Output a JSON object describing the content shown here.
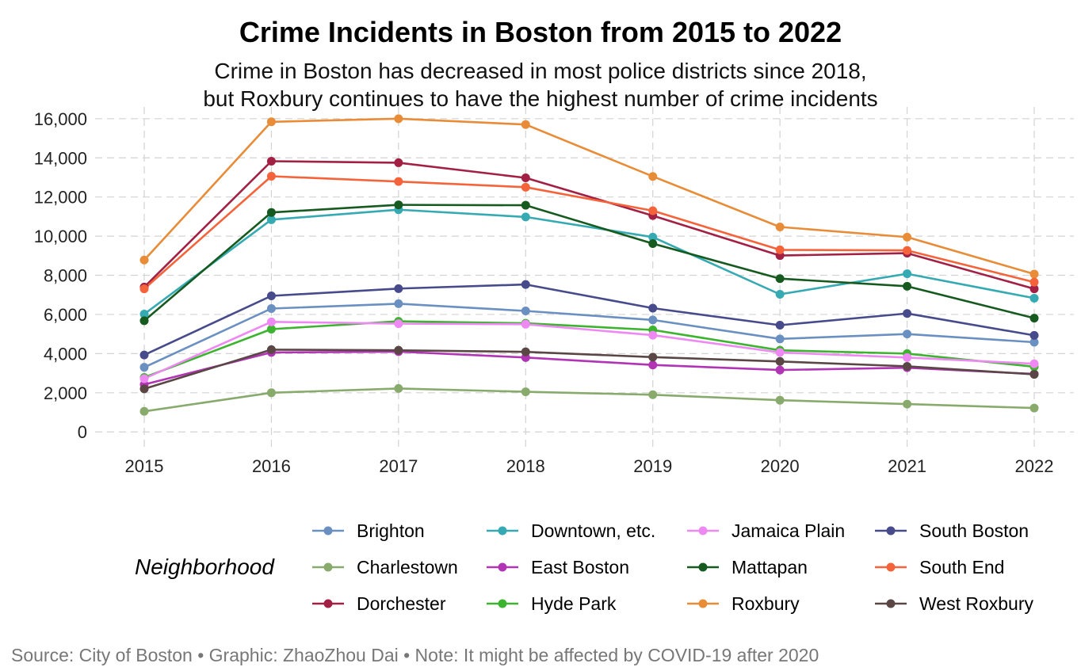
{
  "title": "Crime Incidents in Boston from 2015 to 2022",
  "subtitle_line1": "Crime in Boston has decreased in most police districts since 2018,",
  "subtitle_line2": "but Roxbury continues to have the highest number of crime incidents",
  "caption": "Source: City of Boston • Graphic: ZhaoZhou Dai • Note: It might be affected by COVID-19 after 2020",
  "legend_title": "Neighborhood",
  "chart_data": {
    "type": "line",
    "title": "Crime Incidents in Boston from 2015 to 2022",
    "xlabel": "",
    "ylabel": "",
    "x": [
      2015,
      2016,
      2017,
      2018,
      2019,
      2020,
      2021,
      2022
    ],
    "x_tick_labels": [
      "2015",
      "2016",
      "2017",
      "2018",
      "2019",
      "2020",
      "2021",
      "2022"
    ],
    "y_ticks": [
      0,
      2000,
      4000,
      6000,
      8000,
      10000,
      12000,
      14000,
      16000
    ],
    "y_tick_labels": [
      "0",
      "2,000",
      "4,000",
      "6,000",
      "8,000",
      "10,000",
      "12,000",
      "14,000",
      "16,000"
    ],
    "ylim": [
      -800,
      16600
    ],
    "grid": true,
    "legend_position": "bottom",
    "series": [
      {
        "name": "Brighton",
        "color": "#6a8fc1",
        "values": [
          3300,
          6300,
          6550,
          6180,
          5720,
          4750,
          5000,
          4580
        ]
      },
      {
        "name": "Charlestown",
        "color": "#88ab6d",
        "values": [
          1050,
          2000,
          2220,
          2050,
          1900,
          1620,
          1420,
          1220
        ]
      },
      {
        "name": "Dorchester",
        "color": "#a32045",
        "values": [
          7400,
          13830,
          13750,
          12980,
          11050,
          9010,
          9130,
          7310
        ]
      },
      {
        "name": "Downtown, etc.",
        "color": "#36aab2",
        "values": [
          6020,
          10840,
          11350,
          10980,
          9950,
          7030,
          8080,
          6830
        ]
      },
      {
        "name": "East Boston",
        "color": "#b134b5",
        "values": [
          2420,
          4060,
          4100,
          3800,
          3420,
          3160,
          3280,
          2960
        ]
      },
      {
        "name": "Hyde Park",
        "color": "#3cb430",
        "values": [
          2780,
          5250,
          5650,
          5550,
          5210,
          4170,
          4000,
          3330
        ]
      },
      {
        "name": "Jamaica Plain",
        "color": "#ee88f2",
        "values": [
          2720,
          5620,
          5530,
          5500,
          4940,
          4060,
          3800,
          3480
        ]
      },
      {
        "name": "Mattapan",
        "color": "#165a20",
        "values": [
          5680,
          11210,
          11600,
          11580,
          9620,
          7830,
          7440,
          5810
        ]
      },
      {
        "name": "Roxbury",
        "color": "#e88c38",
        "values": [
          8780,
          15840,
          16000,
          15700,
          13050,
          10470,
          9950,
          8060
        ]
      },
      {
        "name": "South Boston",
        "color": "#474b8b",
        "values": [
          3930,
          6950,
          7320,
          7530,
          6320,
          5450,
          6050,
          4930
        ]
      },
      {
        "name": "South End",
        "color": "#f5633b",
        "values": [
          7310,
          13060,
          12790,
          12500,
          11300,
          9300,
          9270,
          7650
        ]
      },
      {
        "name": "West Roxbury",
        "color": "#5a4745",
        "values": [
          2200,
          4200,
          4170,
          4090,
          3820,
          3600,
          3350,
          2940
        ]
      }
    ]
  }
}
